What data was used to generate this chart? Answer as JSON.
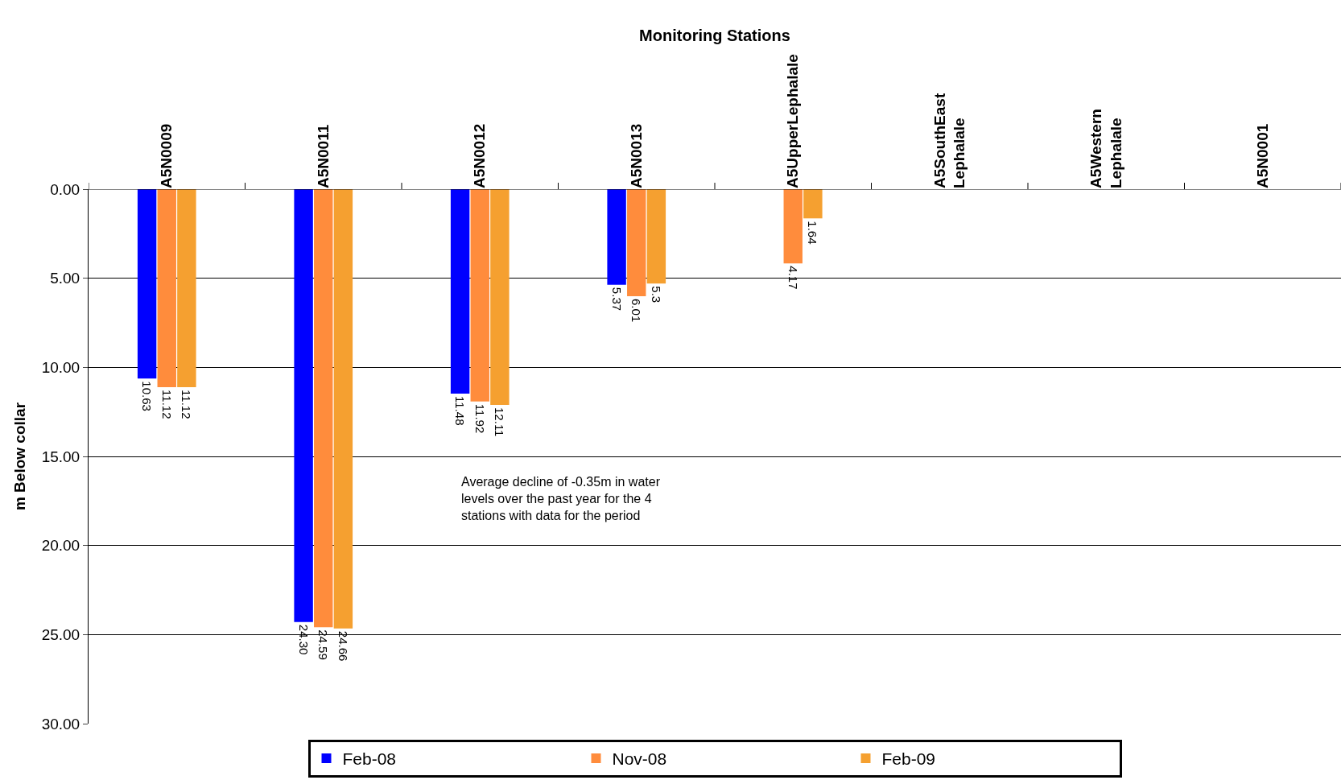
{
  "chart_data": {
    "type": "bar",
    "xlabel": "Monitoring Stations",
    "ylabel": "m Below collar",
    "categories": [
      "A5N0009",
      "A5N0011",
      "A5N0012",
      "A5N0013",
      "A5UpperLephalale",
      "A5SouthEast Lephalale",
      "A5Western Lephalale",
      "A5N0001"
    ],
    "series": [
      {
        "name": "Feb-08",
        "color": "#0000ff",
        "values": [
          10.63,
          24.3,
          11.48,
          5.37,
          null,
          null,
          null,
          null
        ],
        "value_labels": [
          "10.63",
          "24.30",
          "11.48",
          "5.37",
          null,
          null,
          null,
          null
        ]
      },
      {
        "name": "Nov-08",
        "color": "#ff8c3c",
        "values": [
          11.12,
          24.59,
          11.92,
          6.01,
          4.17,
          null,
          null,
          null
        ],
        "value_labels": [
          "11.12",
          "24.59",
          "11.92",
          "6.01",
          "4.17",
          null,
          null,
          null
        ]
      },
      {
        "name": "Feb-09",
        "color": "#f5a030",
        "values": [
          11.12,
          24.66,
          12.11,
          5.3,
          1.64,
          null,
          null,
          null
        ],
        "value_labels": [
          "11.12",
          "24.66",
          "12.11",
          "5.3",
          "1.64",
          null,
          null,
          null
        ]
      }
    ],
    "ylim": [
      30,
      0
    ],
    "yticks": [
      {
        "value": 0,
        "label": "0.00"
      },
      {
        "value": 5,
        "label": "5.00"
      },
      {
        "value": 10,
        "label": "10.00"
      },
      {
        "value": 15,
        "label": "15.00"
      },
      {
        "value": 20,
        "label": "20.00"
      },
      {
        "value": 25,
        "label": "25.00"
      },
      {
        "value": 30,
        "label": "30.00"
      }
    ],
    "grid": "y",
    "legend": "bottom",
    "annotations": [
      "Average decline of -0.35m in water levels over the past year for the 4 stations with data for the period"
    ]
  }
}
